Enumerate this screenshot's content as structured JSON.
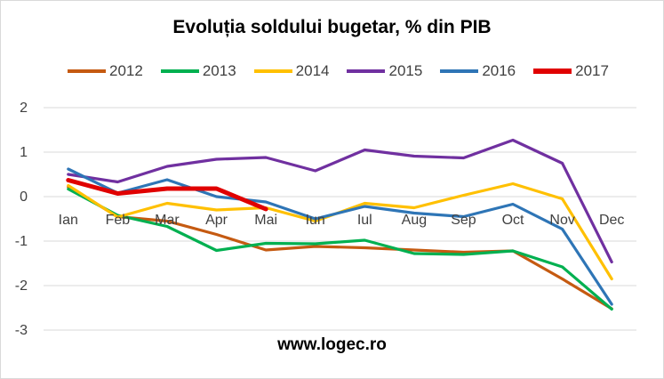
{
  "chart_data": {
    "type": "line",
    "title": "Evoluția soldului bugetar, % din PIB",
    "xlabel": "",
    "ylabel": "",
    "categories": [
      "Ian",
      "Feb",
      "Mar",
      "Apr",
      "Mai",
      "Iun",
      "Iul",
      "Aug",
      "Sep",
      "Oct",
      "Nov",
      "Dec"
    ],
    "yticks": [
      "2",
      "1",
      "0",
      "-1",
      "-2",
      "-3"
    ],
    "ylim": [
      -3,
      2
    ],
    "grid": "horizontal",
    "legend_position": "top",
    "series": [
      {
        "name": "2012",
        "color": "#c55a11",
        "values": [
          0.22,
          -0.45,
          -0.55,
          -0.85,
          -1.2,
          -1.12,
          -1.15,
          -1.2,
          -1.25,
          -1.22,
          -1.85,
          -2.52
        ]
      },
      {
        "name": "2013",
        "color": "#00b050",
        "values": [
          0.17,
          -0.42,
          -0.67,
          -1.21,
          -1.05,
          -1.06,
          -0.98,
          -1.28,
          -1.3,
          -1.22,
          -1.58,
          -2.53
        ]
      },
      {
        "name": "2014",
        "color": "#ffc000",
        "values": [
          0.25,
          -0.46,
          -0.15,
          -0.3,
          -0.25,
          -0.55,
          -0.15,
          -0.25,
          0.03,
          0.29,
          -0.05,
          -1.85
        ]
      },
      {
        "name": "2015",
        "color": "#7030a0",
        "values": [
          0.5,
          0.33,
          0.68,
          0.84,
          0.88,
          0.58,
          1.05,
          0.91,
          0.87,
          1.27,
          0.75,
          -1.47
        ]
      },
      {
        "name": "2016",
        "color": "#2e75b6",
        "values": [
          0.62,
          0.08,
          0.38,
          0.0,
          -0.12,
          -0.5,
          -0.22,
          -0.37,
          -0.45,
          -0.17,
          -0.73,
          -2.42
        ]
      },
      {
        "name": "2017",
        "color": "#e00000",
        "values": [
          0.37,
          0.07,
          0.18,
          0.18,
          -0.28,
          null,
          null,
          null,
          null,
          null,
          null,
          null
        ],
        "thick": true
      }
    ]
  },
  "footer": {
    "text": "www.logec.ro"
  }
}
